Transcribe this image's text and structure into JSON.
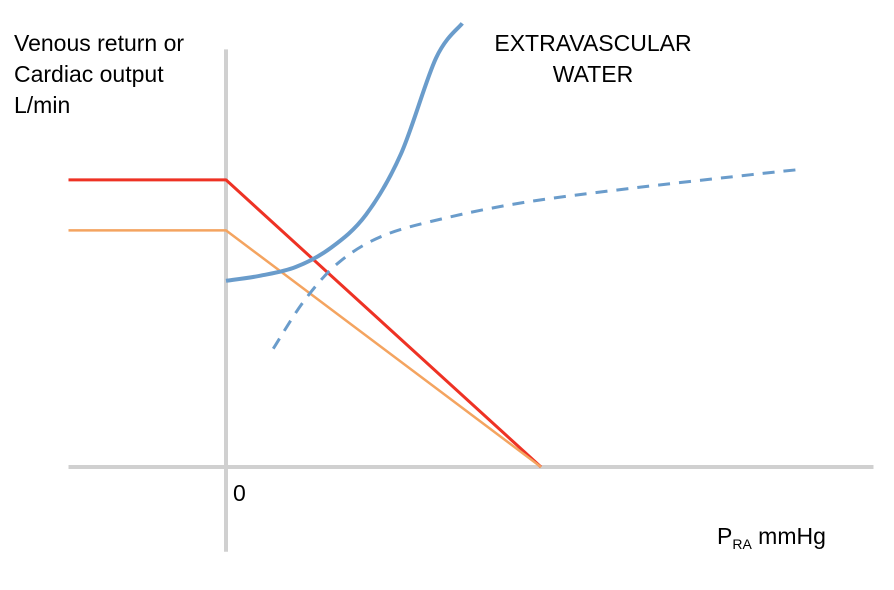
{
  "chart_data": {
    "type": "line",
    "ylabel_lines": [
      "Venous return or",
      "Cardiac output",
      "L/min"
    ],
    "xlabel": {
      "main": "P",
      "sub": "RA",
      "unit": " mmHg"
    },
    "origin_tick_label": "0",
    "annotation_lines": [
      "EXTRAVASCULAR",
      "WATER"
    ],
    "colors": {
      "axis": "#d0d0d0",
      "venous_return_red": "#ee3224",
      "venous_return_orange": "#f4a460",
      "cardiac_function": "#6a9ccb"
    },
    "xlim": [
      -9,
      37
    ],
    "ylim": [
      -2,
      24
    ],
    "grid": false,
    "series": [
      {
        "values": [
          [
            -9,
            16.5
          ],
          [
            0,
            16.5
          ],
          [
            18,
            0
          ]
        ],
        "style": "solid",
        "colorKey": "venous_return_red"
      },
      {
        "values": [
          [
            -9,
            13.6
          ],
          [
            0,
            13.6
          ],
          [
            18,
            0
          ]
        ],
        "style": "solid",
        "colorKey": "venous_return_orange"
      },
      {
        "values": [
          [
            0,
            10.7
          ],
          [
            2,
            11.0
          ],
          [
            4,
            11.5
          ],
          [
            6,
            12.6
          ],
          [
            8,
            14.5
          ],
          [
            10,
            18.0
          ],
          [
            12,
            23.5
          ],
          [
            13.5,
            25.5
          ]
        ],
        "style": "solid",
        "colorKey": "cardiac_function"
      },
      {
        "values": [
          [
            2.7,
            6.8
          ],
          [
            4.5,
            9.6
          ],
          [
            6.5,
            11.8
          ],
          [
            9,
            13.3
          ],
          [
            12.5,
            14.3
          ],
          [
            17,
            15.2
          ],
          [
            23,
            16.0
          ],
          [
            30,
            16.8
          ],
          [
            32.8,
            17.1
          ]
        ],
        "style": "dashed",
        "colorKey": "cardiac_function"
      }
    ]
  }
}
